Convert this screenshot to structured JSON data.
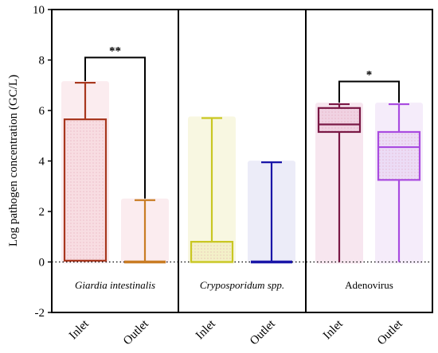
{
  "chart_data": {
    "type": "box",
    "ylabel": "Log pathogen concentration (GC/L)",
    "ylim": [
      -2,
      10
    ],
    "yticks": [
      "-2",
      "0",
      "2",
      "4",
      "6",
      "8",
      "10"
    ],
    "zero_line": "dotted",
    "groups": [
      {
        "label": "Giardia intestinalis",
        "italic": true,
        "boxes": [
          {
            "category": "Inlet",
            "color": "#a8371e",
            "fill": "#f8dde2",
            "min": 0,
            "q1": 0.05,
            "median": 0.05,
            "q3": 5.65,
            "max": 7.1
          },
          {
            "category": "Outlet",
            "color": "#c97d24",
            "fill": "#f8dde2",
            "min": 0,
            "q1": 0,
            "median": 0,
            "q3": 0,
            "max": 2.45
          }
        ],
        "significance": {
          "label": "**",
          "y": 8.1
        }
      },
      {
        "label": "Cryposporidum spp.",
        "italic": true,
        "boxes": [
          {
            "category": "Inlet",
            "color": "#c9c722",
            "fill": "#f3f0c8",
            "min": 0,
            "q1": 0,
            "median": 0,
            "q3": 0.8,
            "max": 5.7
          },
          {
            "category": "Outlet",
            "color": "#1a16a8",
            "fill": "#dcdcf2",
            "min": 0,
            "q1": 0,
            "median": 0,
            "q3": 0,
            "max": 3.95
          }
        ]
      },
      {
        "label": "Adenovirus",
        "italic": false,
        "boxes": [
          {
            "category": "Inlet",
            "color": "#7a1845",
            "fill": "#f0d2e2",
            "min": 0,
            "q1": 5.15,
            "median": 5.45,
            "q3": 6.1,
            "max": 6.25
          },
          {
            "category": "Outlet",
            "color": "#a94be0",
            "fill": "#ecdcf6",
            "min": 0,
            "q1": 3.25,
            "median": 4.55,
            "q3": 5.15,
            "max": 6.25
          }
        ],
        "significance": {
          "label": "*",
          "y": 7.15
        }
      }
    ]
  }
}
